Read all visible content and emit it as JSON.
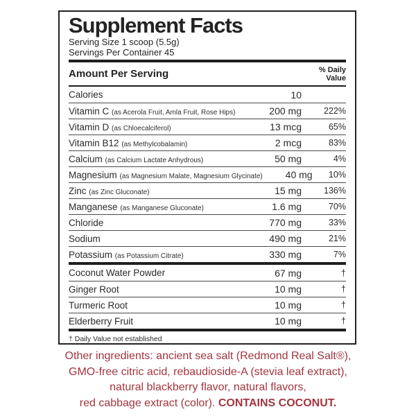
{
  "title": "Supplement Facts",
  "serving": {
    "size": "Serving Size 1 scoop (5.5g)",
    "per_container": "Servings Per Container 45"
  },
  "header": {
    "amount_label": "Amount Per Serving",
    "daily_value_line1": "% Daily",
    "daily_value_line2": "Value"
  },
  "nutrients": [
    {
      "name": "Calories",
      "detail": "",
      "amount": "10",
      "dv": ""
    },
    {
      "name": "Vitamin C",
      "detail": "(as Acerola Fruit, Amla Fruit, Rose Hips)",
      "amount": "200 mg",
      "dv": "222%"
    },
    {
      "name": "Vitamin D",
      "detail": "(as Chloecalciferol)",
      "amount": "13 mcg",
      "dv": "65%"
    },
    {
      "name": "Vitamin B12",
      "detail": "(as Methylcobalamin)",
      "amount": "2 mcg",
      "dv": "83%"
    },
    {
      "name": "Calcium",
      "detail": "(as Calcium Lactate Anhydrous)",
      "amount": "50 mg",
      "dv": "4%"
    },
    {
      "name": "Magnesium",
      "detail": "(as Magnesium Malate, Magnesium Glycinate)",
      "amount": "40 mg",
      "dv": "10%"
    },
    {
      "name": "Zinc",
      "detail": "(as Zinc Gluconate)",
      "amount": "15 mg",
      "dv": "136%"
    },
    {
      "name": "Manganese",
      "detail": "(as Manganese Gluconate)",
      "amount": "1.6 mg",
      "dv": "70%"
    },
    {
      "name": "Chloride",
      "detail": "",
      "amount": "770 mg",
      "dv": "33%"
    },
    {
      "name": "Sodium",
      "detail": "",
      "amount": "490 mg",
      "dv": "21%"
    },
    {
      "name": "Potassium",
      "detail": "(as Potassium Citrate)",
      "amount": "330 mg",
      "dv": "7%"
    }
  ],
  "botanicals": [
    {
      "name": "Coconut Water Powder",
      "detail": "",
      "amount": "67 mg",
      "dv": "†"
    },
    {
      "name": "Ginger Root",
      "detail": "",
      "amount": "10 mg",
      "dv": "†"
    },
    {
      "name": "Turmeric Root",
      "detail": "",
      "amount": "10 mg",
      "dv": "†"
    },
    {
      "name": "Elderberry Fruit",
      "detail": "",
      "amount": "10 mg",
      "dv": "†"
    }
  ],
  "footnote": "† Daily Value not established",
  "other_ingredients": {
    "lines": [
      "Other ingredients: ancient sea salt (Redmond Real Salt®),",
      "GMO-free citric acid, rebaudioside-A (stevia leaf extract),",
      "natural blackberry flavor, natural flavors,",
      "red cabbage extract (color). "
    ],
    "contains": "CONTAINS COCONUT."
  },
  "colors": {
    "accent_red": "#a23540",
    "text_dark": "#242424"
  }
}
